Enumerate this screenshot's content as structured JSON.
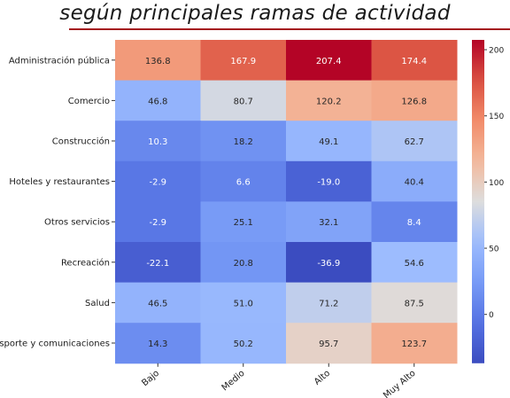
{
  "page": {
    "title": "según principales ramas de actividad"
  },
  "chart_data": {
    "type": "heatmap",
    "title": "",
    "xlabel": "",
    "ylabel": "",
    "columns": [
      "Bajo",
      "Medio",
      "Alto",
      "Muy Alto"
    ],
    "rows": [
      "Administración pública",
      "Comercio",
      "Construcción",
      "Hoteles y restaurantes",
      "Otros servicios",
      "Recreación",
      "Salud",
      "Transporte y comunicaciones"
    ],
    "values": [
      [
        136.8,
        167.9,
        207.4,
        174.4
      ],
      [
        46.8,
        80.7,
        120.2,
        126.8
      ],
      [
        10.3,
        18.2,
        49.1,
        62.7
      ],
      [
        -2.9,
        6.6,
        -19.0,
        40.4
      ],
      [
        -2.9,
        25.1,
        32.1,
        8.4
      ],
      [
        -22.1,
        20.8,
        -36.9,
        54.6
      ],
      [
        46.5,
        51.0,
        71.2,
        87.5
      ],
      [
        14.3,
        50.2,
        95.7,
        123.7
      ]
    ],
    "cell_labels": [
      [
        "136.8",
        "167.9",
        "207.4",
        "174.4"
      ],
      [
        "46.8",
        "80.7",
        "120.2",
        "126.8"
      ],
      [
        "10.3",
        "18.2",
        "49.1",
        "62.7"
      ],
      [
        "-2.9",
        "6.6",
        "-19.0",
        "40.4"
      ],
      [
        "-2.9",
        "25.1",
        "32.1",
        "8.4"
      ],
      [
        "-22.1",
        "20.8",
        "-36.9",
        "54.6"
      ],
      [
        "46.5",
        "51.0",
        "71.2",
        "87.5"
      ],
      [
        "14.3",
        "50.2",
        "95.7",
        "123.7"
      ]
    ],
    "colorbar": {
      "min": -36.9,
      "max": 207.4,
      "ticks": [
        0,
        50,
        100,
        150,
        200
      ],
      "tick_labels": [
        "0",
        "50",
        "100",
        "150",
        "200"
      ],
      "colormap": "coolwarm"
    },
    "grid": false
  }
}
